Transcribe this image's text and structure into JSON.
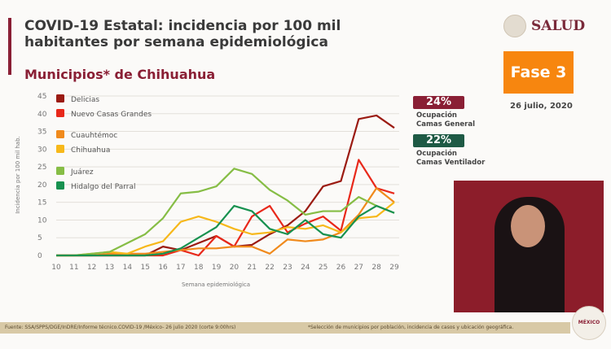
{
  "header": {
    "title": "COVID-19 Estatal: incidencia por 100 mil habitantes por semana epidemiológica",
    "subtitle": "Municipios* de Chihuahua",
    "logo_text": "SALUD"
  },
  "phase": {
    "label": "Fase 3",
    "date": "26 julio, 2020",
    "color": "#f7860f"
  },
  "occupancy": [
    {
      "value": "24%",
      "label_line1": "Ocupación",
      "label_line2": "Camas General",
      "color": "#8a1f35"
    },
    {
      "value": "22%",
      "label_line1": "Ocupación",
      "label_line2": "Camas Ventilador",
      "color": "#1e5a45"
    }
  ],
  "footer": {
    "source": "Fuente: SSA/SPPS/DGE/InDRE/Informe técnico.COVID-19 /México- 26 julio 2020 (corte 9:00hrs)",
    "note": "*Selección de municipios por población, incidencia de casos y ubicación geográfica.",
    "badge": "MÉXICO"
  },
  "chart_data": {
    "type": "line",
    "xlabel": "Semana epidemiológica",
    "ylabel": "Incidencia por 100 mil hab.",
    "ylim": [
      0,
      45
    ],
    "yticks": [
      0,
      5,
      10,
      15,
      20,
      25,
      30,
      35,
      40,
      45
    ],
    "x": [
      10,
      11,
      12,
      13,
      14,
      15,
      16,
      17,
      18,
      19,
      20,
      21,
      22,
      23,
      24,
      25,
      26,
      27,
      28,
      29
    ],
    "grid": true,
    "legend": "top-left",
    "series": [
      {
        "name": "Delicias",
        "color": "#9b1b12",
        "values": [
          0,
          0,
          0,
          0,
          0,
          0,
          2.5,
          1.5,
          3.5,
          5.5,
          2.5,
          3,
          6,
          8.5,
          12.5,
          19.5,
          21,
          38.5,
          39.5,
          36
        ]
      },
      {
        "name": "Nuevo Casas Grandes",
        "color": "#e8281a",
        "values": [
          0,
          0,
          0,
          0,
          0,
          0,
          0,
          1.5,
          0,
          5.5,
          2.5,
          11,
          14,
          6.5,
          9,
          11,
          7,
          27,
          19,
          17.5
        ]
      },
      {
        "name": "Cuauhtémoc",
        "color": "#f08a1c",
        "values": [
          0,
          0,
          0,
          0.5,
          0.5,
          0.5,
          1,
          1.5,
          2,
          2,
          2.5,
          2.5,
          0.5,
          4.5,
          4,
          4.5,
          6.5,
          11.5,
          19,
          15
        ]
      },
      {
        "name": "Chihuahua",
        "color": "#f7b81a",
        "values": [
          0,
          0,
          0.5,
          1,
          0.5,
          2.5,
          4,
          9.5,
          11,
          9.5,
          7.5,
          6,
          6.5,
          8,
          7.5,
          8.5,
          6.5,
          10.5,
          11,
          15
        ]
      },
      {
        "name": "Juárez",
        "color": "#86bd45",
        "values": [
          0,
          0,
          0.5,
          1,
          3.5,
          6,
          10.5,
          17.5,
          18,
          19.5,
          24.5,
          23,
          18.5,
          15.5,
          11.5,
          12.5,
          12.5,
          16.5,
          14,
          12
        ]
      },
      {
        "name": "Hidalgo del Parral",
        "color": "#17914f",
        "values": [
          0,
          0,
          0,
          0,
          0,
          0,
          0.5,
          2,
          5,
          8,
          14,
          12.5,
          7.5,
          6,
          10,
          6,
          5,
          11,
          14,
          12
        ]
      }
    ]
  }
}
